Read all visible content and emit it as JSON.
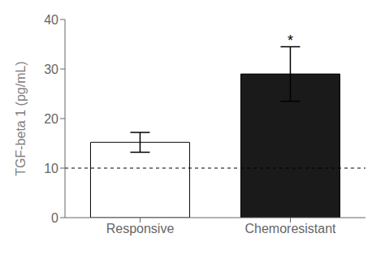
{
  "chart_data": {
    "type": "bar",
    "categories": [
      "Responsive",
      "Chemoresistant"
    ],
    "values": [
      15.2,
      29.0
    ],
    "errors": [
      2.0,
      5.5
    ],
    "colors": [
      "#ffffff",
      "#1a1a1a"
    ],
    "ylabel": "TGF-beta 1 (pg/mL)",
    "ylim": [
      0,
      40
    ],
    "yticks": [
      0,
      10,
      20,
      30,
      40
    ],
    "grid": false,
    "reference_line": {
      "y": 10,
      "line_style": "dashed"
    },
    "annotations": [
      {
        "x": "Chemoresistant",
        "y": 34.8,
        "text": "*"
      }
    ]
  }
}
